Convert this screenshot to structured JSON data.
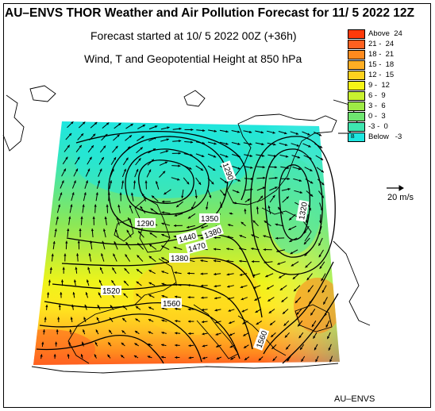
{
  "header": {
    "title": "AU–ENVS THOR Weather and Air Pollution Forecast for 11/ 5 2022  12Z",
    "forecast_started": "Forecast started at 10/ 5 2022  00Z (+36h)",
    "variables": "Wind, T and Geopotential Height at 850 hPa"
  },
  "legend": {
    "items": [
      {
        "label": "Above  24",
        "color": "#ff3a0a"
      },
      {
        "label": "21 -  24",
        "color": "#ff6020"
      },
      {
        "label": "18 -  21",
        "color": "#ff8a1e"
      },
      {
        "label": "15 -  18",
        "color": "#ffae24"
      },
      {
        "label": "12 -  15",
        "color": "#ffd21e"
      },
      {
        "label": "9 -  12",
        "color": "#f6f516"
      },
      {
        "label": "6 -  9",
        "color": "#c8f030"
      },
      {
        "label": "3 -  6",
        "color": "#9eea46"
      },
      {
        "label": "0 -  3",
        "color": "#6ee670"
      },
      {
        "label": "-3 -  0",
        "color": "#3ee6b0"
      },
      {
        "label": "Below   -3",
        "color": "#1ee6e0",
        "marker": "B"
      }
    ]
  },
  "wind_reference": {
    "label": "20 m/s"
  },
  "contour_labels": [
    "1290",
    "1350",
    "1290",
    "1380",
    "1440",
    "1320",
    "1380",
    "1470",
    "1520",
    "1560",
    "1560"
  ],
  "credit": "AU–ENVS"
}
